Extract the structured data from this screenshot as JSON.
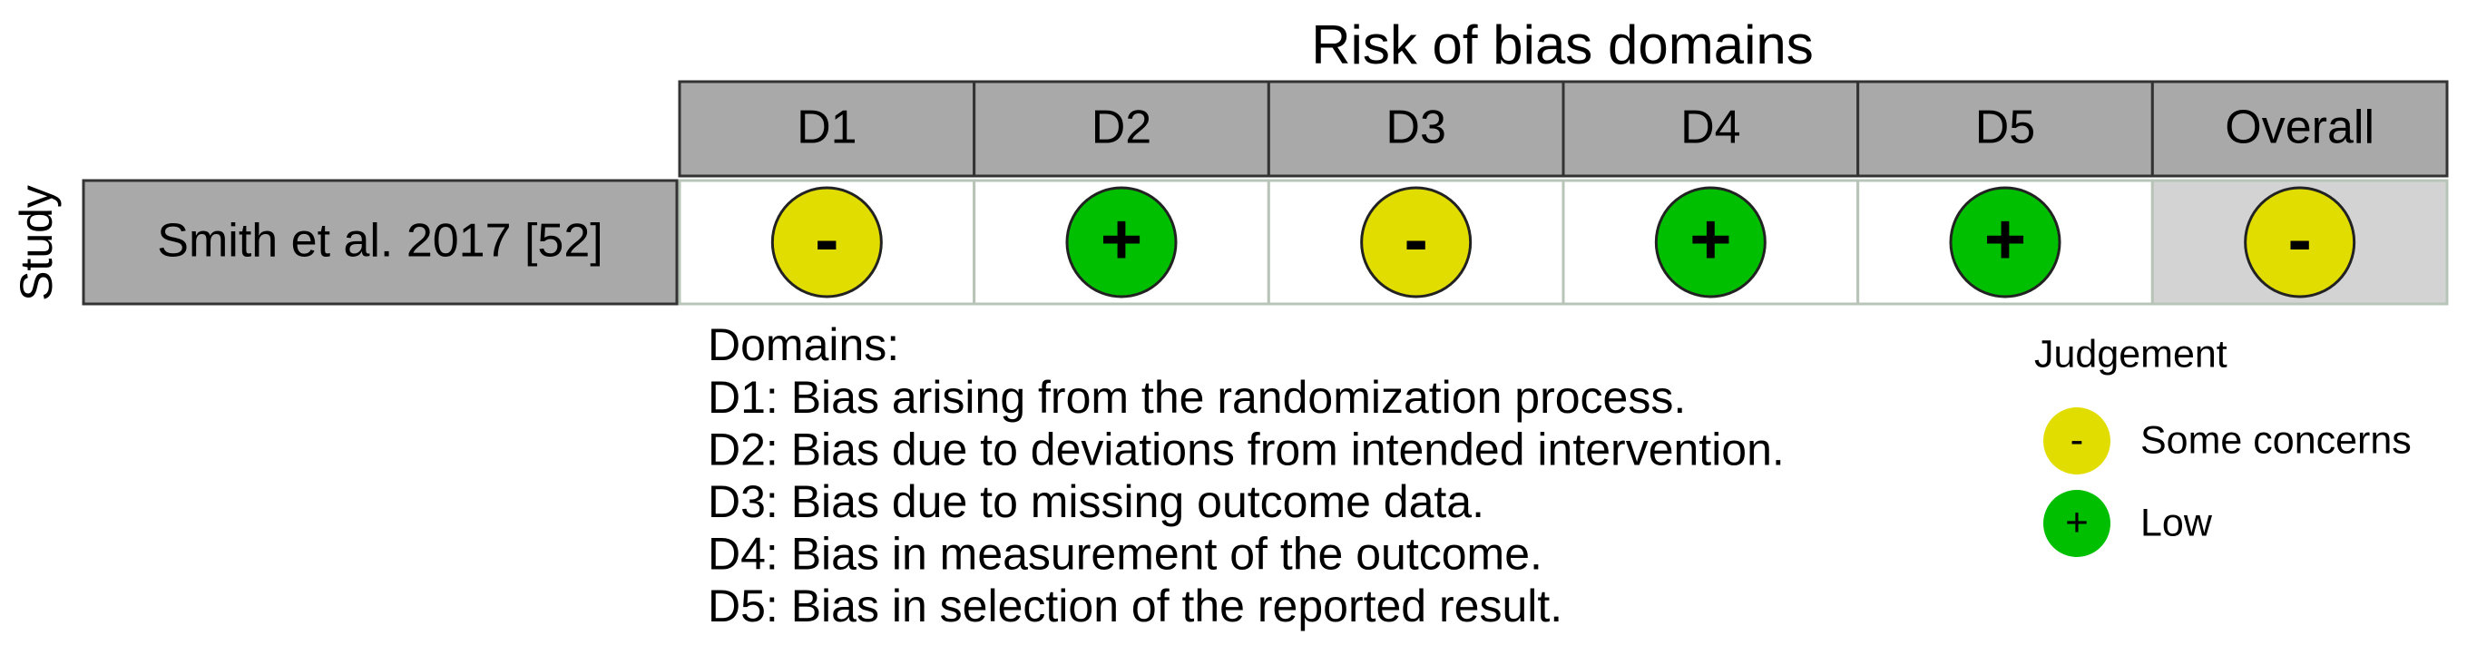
{
  "title": "Risk of bias domains",
  "y_label": "Study",
  "columns": [
    "D1",
    "D2",
    "D3",
    "D4",
    "D5",
    "Overall"
  ],
  "rows": [
    {
      "study": "Smith et al. 2017 [52]",
      "judgements": [
        "-",
        "+",
        "-",
        "+",
        "+",
        "-"
      ]
    }
  ],
  "domains": {
    "heading": "Domains:",
    "items": [
      "D1: Bias arising from the randomization process.",
      "D2: Bias due to deviations from intended intervention.",
      "D3: Bias due to missing outcome data.",
      "D4: Bias in measurement of the outcome.",
      "D5: Bias in selection of the reported result."
    ]
  },
  "judgement_legend": {
    "title": "Judgement",
    "items": [
      {
        "symbol": "-",
        "label": "Some concerns",
        "color": "#e2dd00"
      },
      {
        "symbol": "+",
        "label": "Low",
        "color": "#00bf00"
      }
    ]
  }
}
